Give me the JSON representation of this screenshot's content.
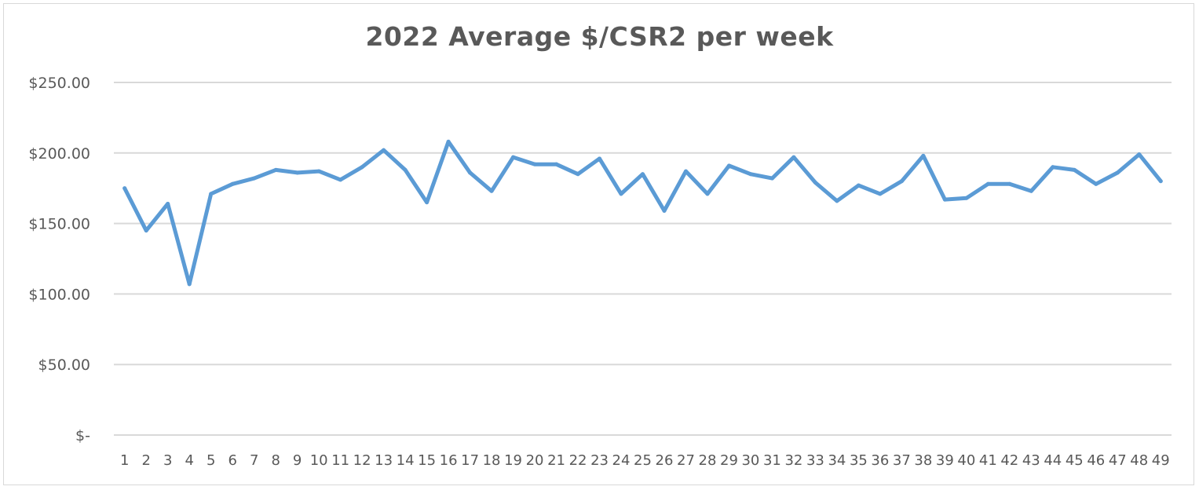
{
  "chart_data": {
    "type": "line",
    "title": "2022 Average $/CSR2 per week",
    "xlabel": "",
    "ylabel": "",
    "ylim": [
      0,
      250
    ],
    "y_ticks": [
      {
        "value": 0,
        "label": "$-"
      },
      {
        "value": 50,
        "label": "$50.00"
      },
      {
        "value": 100,
        "label": "$100.00"
      },
      {
        "value": 150,
        "label": "$150.00"
      },
      {
        "value": 200,
        "label": "$200.00"
      },
      {
        "value": 250,
        "label": "$250.00"
      }
    ],
    "grid": true,
    "legend": "none",
    "line_color": "#5b9bd5",
    "categories": [
      "1",
      "2",
      "3",
      "4",
      "5",
      "6",
      "7",
      "8",
      "9",
      "10",
      "11",
      "12",
      "13",
      "14",
      "15",
      "16",
      "17",
      "18",
      "19",
      "20",
      "21",
      "22",
      "23",
      "24",
      "25",
      "26",
      "27",
      "28",
      "29",
      "30",
      "31",
      "32",
      "33",
      "34",
      "35",
      "36",
      "37",
      "38",
      "39",
      "40",
      "41",
      "42",
      "43",
      "44",
      "45",
      "46",
      "47",
      "48",
      "49"
    ],
    "series": [
      {
        "values": [
          175,
          145,
          164,
          107,
          171,
          178,
          182,
          188,
          186,
          187,
          181,
          190,
          202,
          188,
          165,
          208,
          186,
          173,
          197,
          192,
          192,
          185,
          196,
          171,
          185,
          159,
          187,
          171,
          191,
          185,
          182,
          197,
          179,
          166,
          177,
          171,
          180,
          198,
          167,
          168,
          178,
          178,
          173,
          190,
          188,
          178,
          186,
          199,
          180
        ]
      }
    ]
  }
}
